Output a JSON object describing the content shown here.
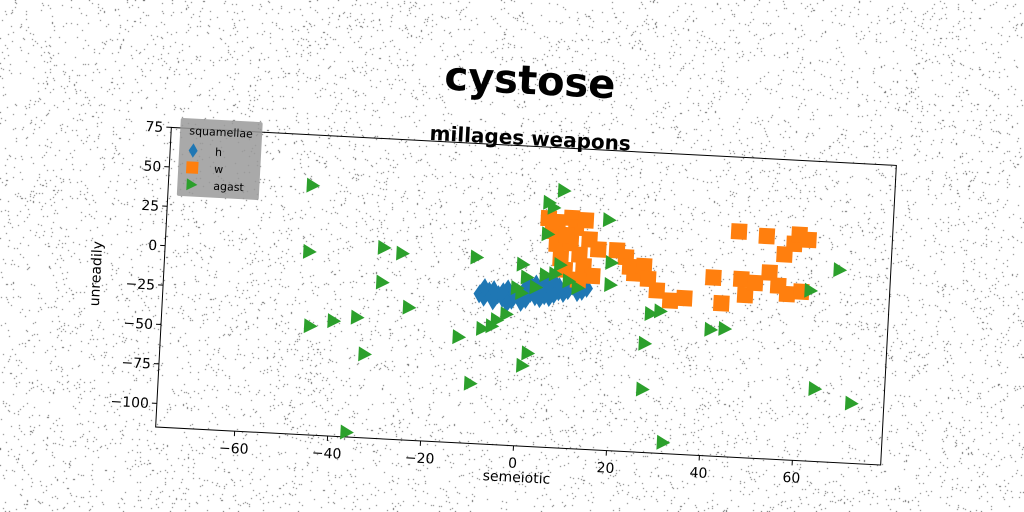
{
  "figure": {
    "title": "cystose"
  },
  "chart_data": {
    "type": "scatter",
    "title": "millages weapons",
    "xlabel": "semeiotic",
    "ylabel": "unreadily",
    "xlim": [
      -77,
      79
    ],
    "ylim": [
      -115,
      75
    ],
    "xticks": [
      -60,
      -40,
      -20,
      0,
      20,
      40,
      60
    ],
    "yticks": [
      75,
      50,
      25,
      0,
      -25,
      -50,
      -75,
      -100
    ],
    "xtick_labels": [
      "−60",
      "−40",
      "−20",
      "0",
      "20",
      "40",
      "60"
    ],
    "ytick_labels": [
      "75",
      "50",
      "25",
      "0",
      "−25",
      "−50",
      "−75",
      "−100"
    ],
    "grid": false,
    "legend": {
      "title": "squamellae",
      "placement": "top-left"
    },
    "series": [
      {
        "name": "h",
        "marker": "diamond",
        "color": "#1f77b4",
        "points": [
          [
            -9,
            -20
          ],
          [
            -8,
            -22
          ],
          [
            -7,
            -18
          ],
          [
            -6,
            -24
          ],
          [
            -5,
            -20
          ],
          [
            -4,
            -22
          ],
          [
            -3,
            -16
          ],
          [
            -2,
            -23
          ],
          [
            -1,
            -18
          ],
          [
            0,
            -20
          ],
          [
            1,
            -14
          ],
          [
            1,
            -22
          ],
          [
            2,
            -18
          ],
          [
            3,
            -12
          ],
          [
            3,
            -20
          ],
          [
            4,
            -16
          ],
          [
            5,
            -10
          ],
          [
            5,
            -19
          ],
          [
            6,
            -14
          ],
          [
            7,
            -18
          ],
          [
            7,
            -10
          ],
          [
            8,
            -13
          ],
          [
            9,
            -17
          ],
          [
            10,
            -8
          ],
          [
            10,
            -15
          ],
          [
            11,
            -12
          ],
          [
            12,
            -16
          ],
          [
            13,
            -11
          ],
          [
            14,
            -13
          ],
          [
            -6,
            -17
          ],
          [
            -3,
            -25
          ],
          [
            0,
            -24
          ],
          [
            2,
            -13
          ],
          [
            4,
            -21
          ],
          [
            6,
            -20
          ],
          [
            8,
            -16
          ],
          [
            11,
            -9
          ],
          [
            13,
            -15
          ],
          [
            -8,
            -16
          ],
          [
            -4,
            -18
          ]
        ]
      },
      {
        "name": "w",
        "marker": "square",
        "color": "#ff7f0e",
        "points": [
          [
            5,
            30
          ],
          [
            6,
            22
          ],
          [
            7,
            14
          ],
          [
            8,
            5
          ],
          [
            9,
            -2
          ],
          [
            10,
            31
          ],
          [
            10,
            15
          ],
          [
            11,
            25
          ],
          [
            12,
            8
          ],
          [
            13,
            1
          ],
          [
            13,
            30
          ],
          [
            14,
            18
          ],
          [
            15,
            -5
          ],
          [
            16,
            12
          ],
          [
            12,
            -8
          ],
          [
            7,
            28
          ],
          [
            9,
            20
          ],
          [
            20,
            12
          ],
          [
            22,
            8
          ],
          [
            23,
            2
          ],
          [
            24,
            -2
          ],
          [
            26,
            3
          ],
          [
            27,
            -5
          ],
          [
            29,
            -12
          ],
          [
            32,
            -18
          ],
          [
            35,
            -16
          ],
          [
            41,
            -2
          ],
          [
            43,
            -18
          ],
          [
            46,
            28
          ],
          [
            47,
            -2
          ],
          [
            48,
            -12
          ],
          [
            50,
            -4
          ],
          [
            52,
            26
          ],
          [
            53,
            3
          ],
          [
            55,
            -5
          ],
          [
            56,
            15
          ],
          [
            57,
            -10
          ],
          [
            58,
            22
          ],
          [
            59,
            28
          ],
          [
            60,
            -8
          ],
          [
            61,
            25
          ]
        ]
      },
      {
        "name": "agast",
        "marker": "triangle-right",
        "color": "#2ca02c",
        "points": [
          [
            -46,
            43
          ],
          [
            -46,
            1
          ],
          [
            -45,
            -46
          ],
          [
            -40,
            -42
          ],
          [
            -35,
            -39
          ],
          [
            -33,
            -62
          ],
          [
            -30,
            6
          ],
          [
            -30,
            -16
          ],
          [
            -26,
            3
          ],
          [
            -24,
            -31
          ],
          [
            -13,
            -48
          ],
          [
            -10,
            3
          ],
          [
            -10,
            -77
          ],
          [
            -8,
            -42
          ],
          [
            -6,
            -40
          ],
          [
            -5,
            -36
          ],
          [
            -3,
            -32
          ],
          [
            -1,
            -15
          ],
          [
            0,
            0
          ],
          [
            0,
            -18
          ],
          [
            1,
            -64
          ],
          [
            1,
            -8
          ],
          [
            2,
            -56
          ],
          [
            3,
            -14
          ],
          [
            5,
            40
          ],
          [
            5,
            20
          ],
          [
            5,
            -6
          ],
          [
            6,
            37
          ],
          [
            7,
            -5
          ],
          [
            8,
            48
          ],
          [
            8,
            1
          ],
          [
            10,
            -9
          ],
          [
            12,
            -13
          ],
          [
            18,
            31
          ],
          [
            19,
            4
          ],
          [
            19,
            -10
          ],
          [
            27,
            -75
          ],
          [
            27,
            -46
          ],
          [
            28,
            -27
          ],
          [
            30,
            -25
          ],
          [
            32,
            -108
          ],
          [
            41,
            -35
          ],
          [
            44,
            -34
          ],
          [
            62,
            -7
          ],
          [
            64,
            -69
          ],
          [
            68,
            7
          ],
          [
            72,
            -77
          ],
          [
            -36,
            -112
          ]
        ]
      }
    ]
  }
}
